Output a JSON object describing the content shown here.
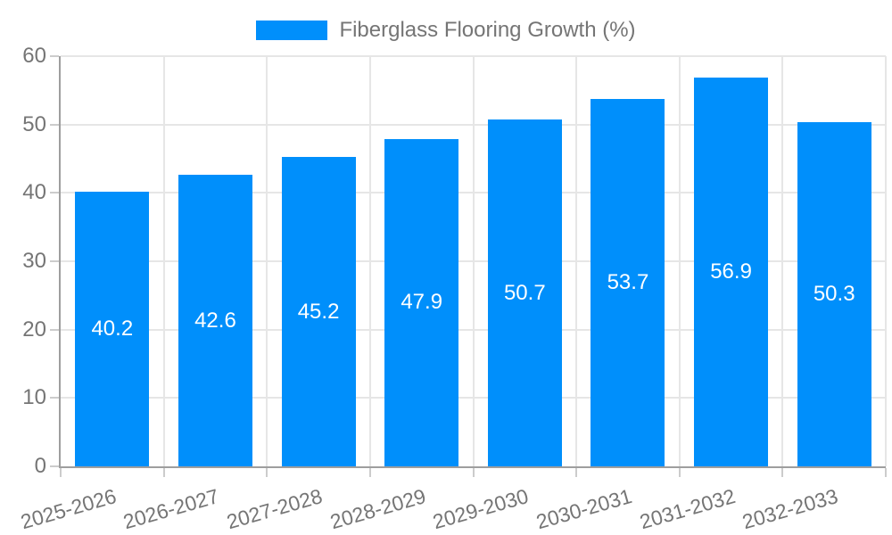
{
  "legend": {
    "label": "Fiberglass Flooring Growth (%)",
    "swatch_color": "#008FFB"
  },
  "chart_data": {
    "type": "bar",
    "title": "Fiberglass Flooring Growth (%)",
    "categories": [
      "2025-2026",
      "2026-2027",
      "2027-2028",
      "2028-2029",
      "2029-2030",
      "2030-2031",
      "2031-2032",
      "2032-2033"
    ],
    "values": [
      40.2,
      42.6,
      45.2,
      47.9,
      50.7,
      53.7,
      56.9,
      50.3
    ],
    "value_labels": [
      "40.2",
      "42.6",
      "45.2",
      "47.9",
      "50.7",
      "53.7",
      "56.9",
      "50.3"
    ],
    "xlabel": "",
    "ylabel": "",
    "ylim": [
      0,
      60
    ],
    "yticks": [
      0,
      10,
      20,
      30,
      40,
      50,
      60
    ],
    "grid": true,
    "legend_position": "top-center",
    "bar_color": "#008FFB",
    "value_label_color": "#ffffff",
    "axis_text_color": "#757575",
    "grid_color": "#e6e6e6",
    "axis_line_color": "#9e9e9e",
    "x_label_rotation_deg": -16
  }
}
